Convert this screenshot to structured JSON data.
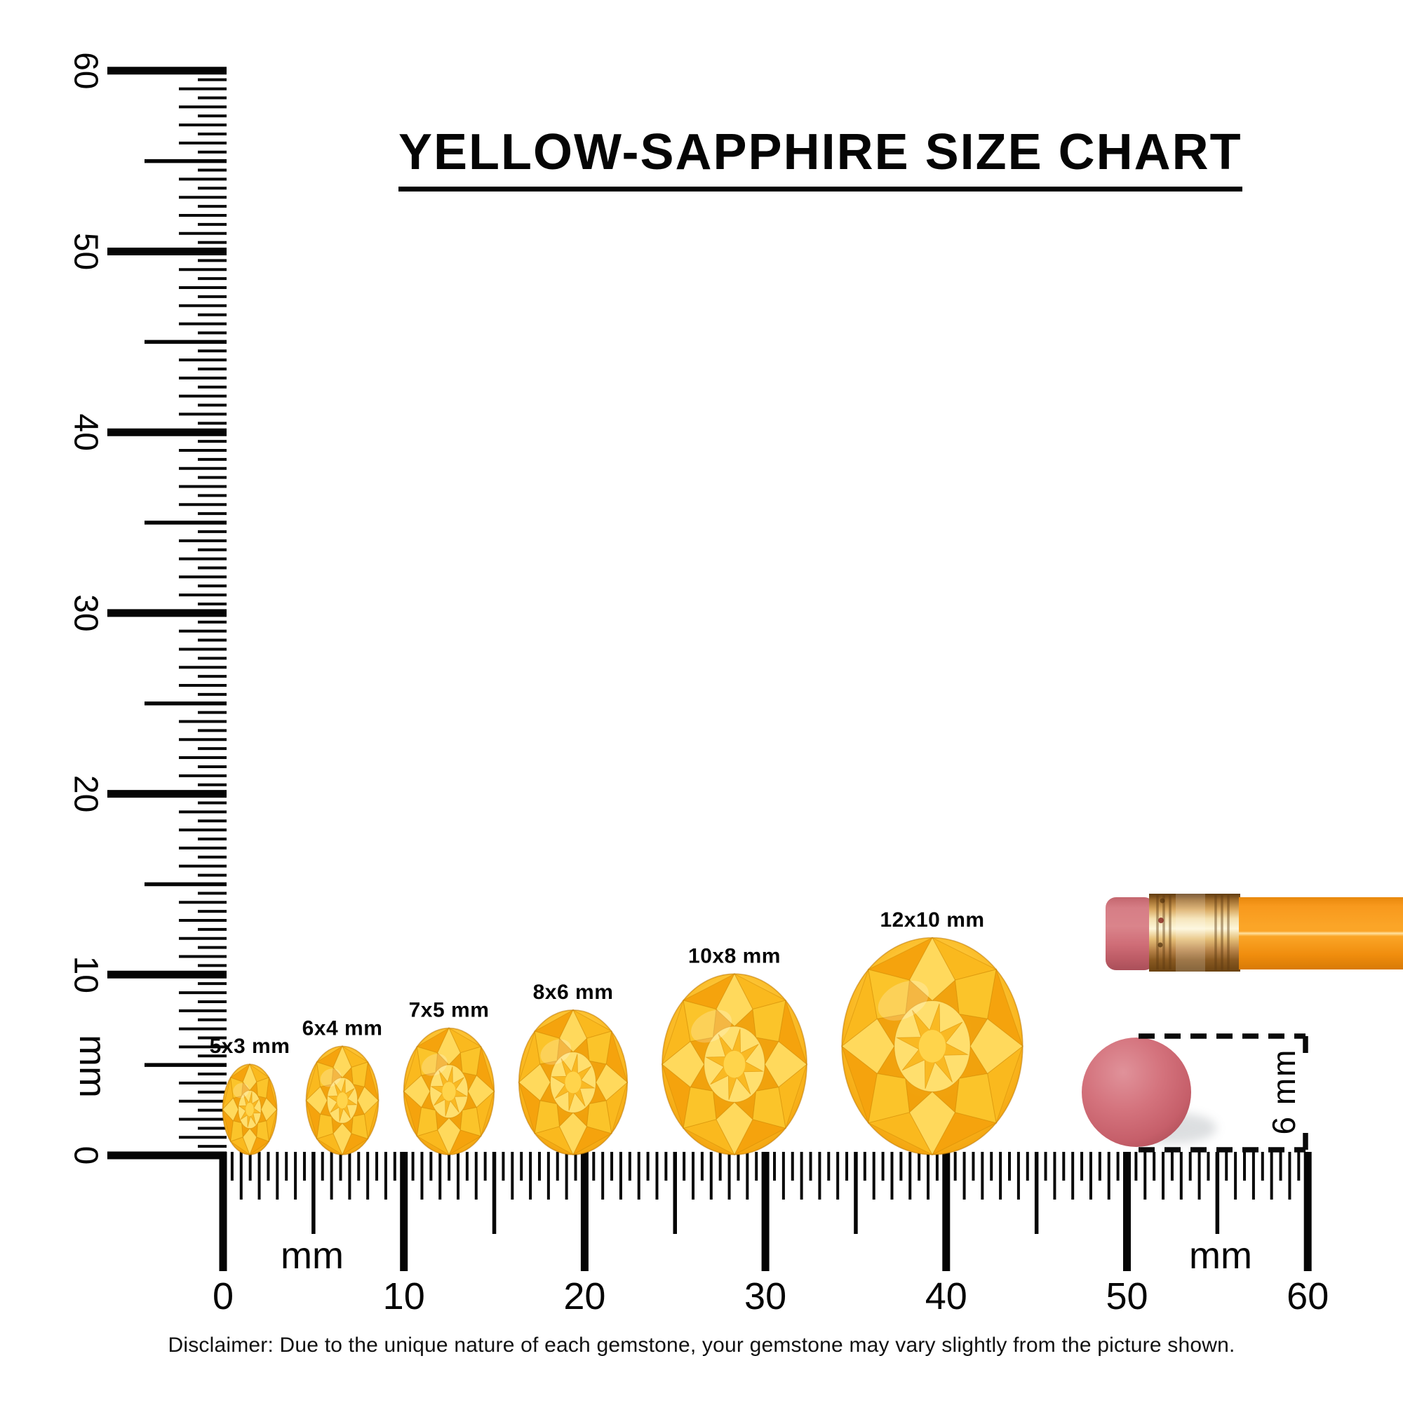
{
  "title": "YELLOW-SAPPHIRE SIZE CHART",
  "disclaimer": "Disclaimer: Due to the unique nature of each gemstone, your gemstone may vary slightly from the picture shown.",
  "rulers": {
    "vertical": {
      "unit_label": "mm",
      "tick_labels": [
        "60",
        "50",
        "40",
        "30",
        "20",
        "10",
        "0"
      ],
      "tick_values_mm": [
        60,
        50,
        40,
        30,
        20,
        10,
        0
      ],
      "max_mm": 60,
      "resolution_mm": 0.5
    },
    "horizontal": {
      "unit_label": "mm",
      "tick_labels": [
        "0",
        "10",
        "20",
        "30",
        "40",
        "50",
        "60"
      ],
      "tick_values_mm": [
        0,
        10,
        20,
        30,
        40,
        50,
        60
      ],
      "max_mm": 60,
      "resolution_mm": 0.5,
      "unit_label_count": 2
    }
  },
  "gems": [
    {
      "label": "5x3 mm",
      "length_mm": 5,
      "width_mm": 3
    },
    {
      "label": "6x4 mm",
      "length_mm": 6,
      "width_mm": 4
    },
    {
      "label": "7x5 mm",
      "length_mm": 7,
      "width_mm": 5
    },
    {
      "label": "8x6 mm",
      "length_mm": 8,
      "width_mm": 6
    },
    {
      "label": "10x8 mm",
      "length_mm": 10,
      "width_mm": 8
    },
    {
      "label": "12x10 mm",
      "length_mm": 12,
      "width_mm": 10
    }
  ],
  "size_indicator": {
    "label": "6 mm",
    "diameter_mm": 6
  },
  "colors": {
    "gem_yellow": "#ffd34a",
    "gem_deep_orange": "#ef9a06",
    "eraser_pink": "#d06e78",
    "pencil_orange": "#f8991d",
    "ink_black": "#050505",
    "background": "#ffffff"
  }
}
